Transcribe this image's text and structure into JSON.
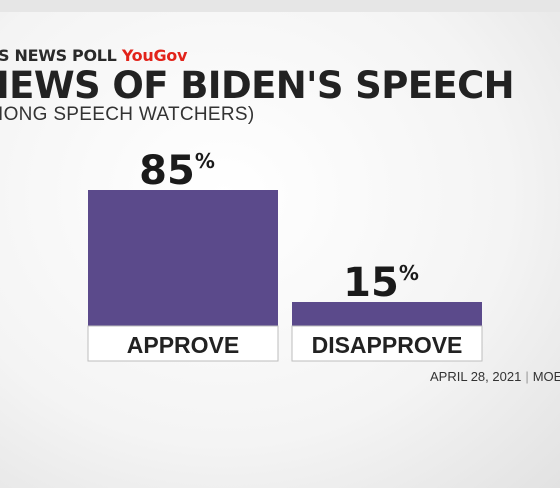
{
  "header": {
    "poll_label": "S NEWS POLL",
    "poll_brand": "YouGov",
    "title": "IEWS OF BIDEN'S SPEECH",
    "subtitle": "IONG SPEECH WATCHERS)"
  },
  "chart_data": {
    "type": "bar",
    "categories": [
      "APPROVE",
      "DISAPPROVE"
    ],
    "values": [
      85,
      15
    ],
    "value_labels": [
      "85",
      "15"
    ],
    "unit": "%",
    "ylim": [
      0,
      100
    ],
    "bar_color": "#5b4a8b",
    "grid": false
  },
  "footer": {
    "date": "APRIL 28, 2021",
    "moe": "MOE:"
  },
  "colors": {
    "brand": "#e2231a",
    "bar": "#5b4a8b"
  }
}
